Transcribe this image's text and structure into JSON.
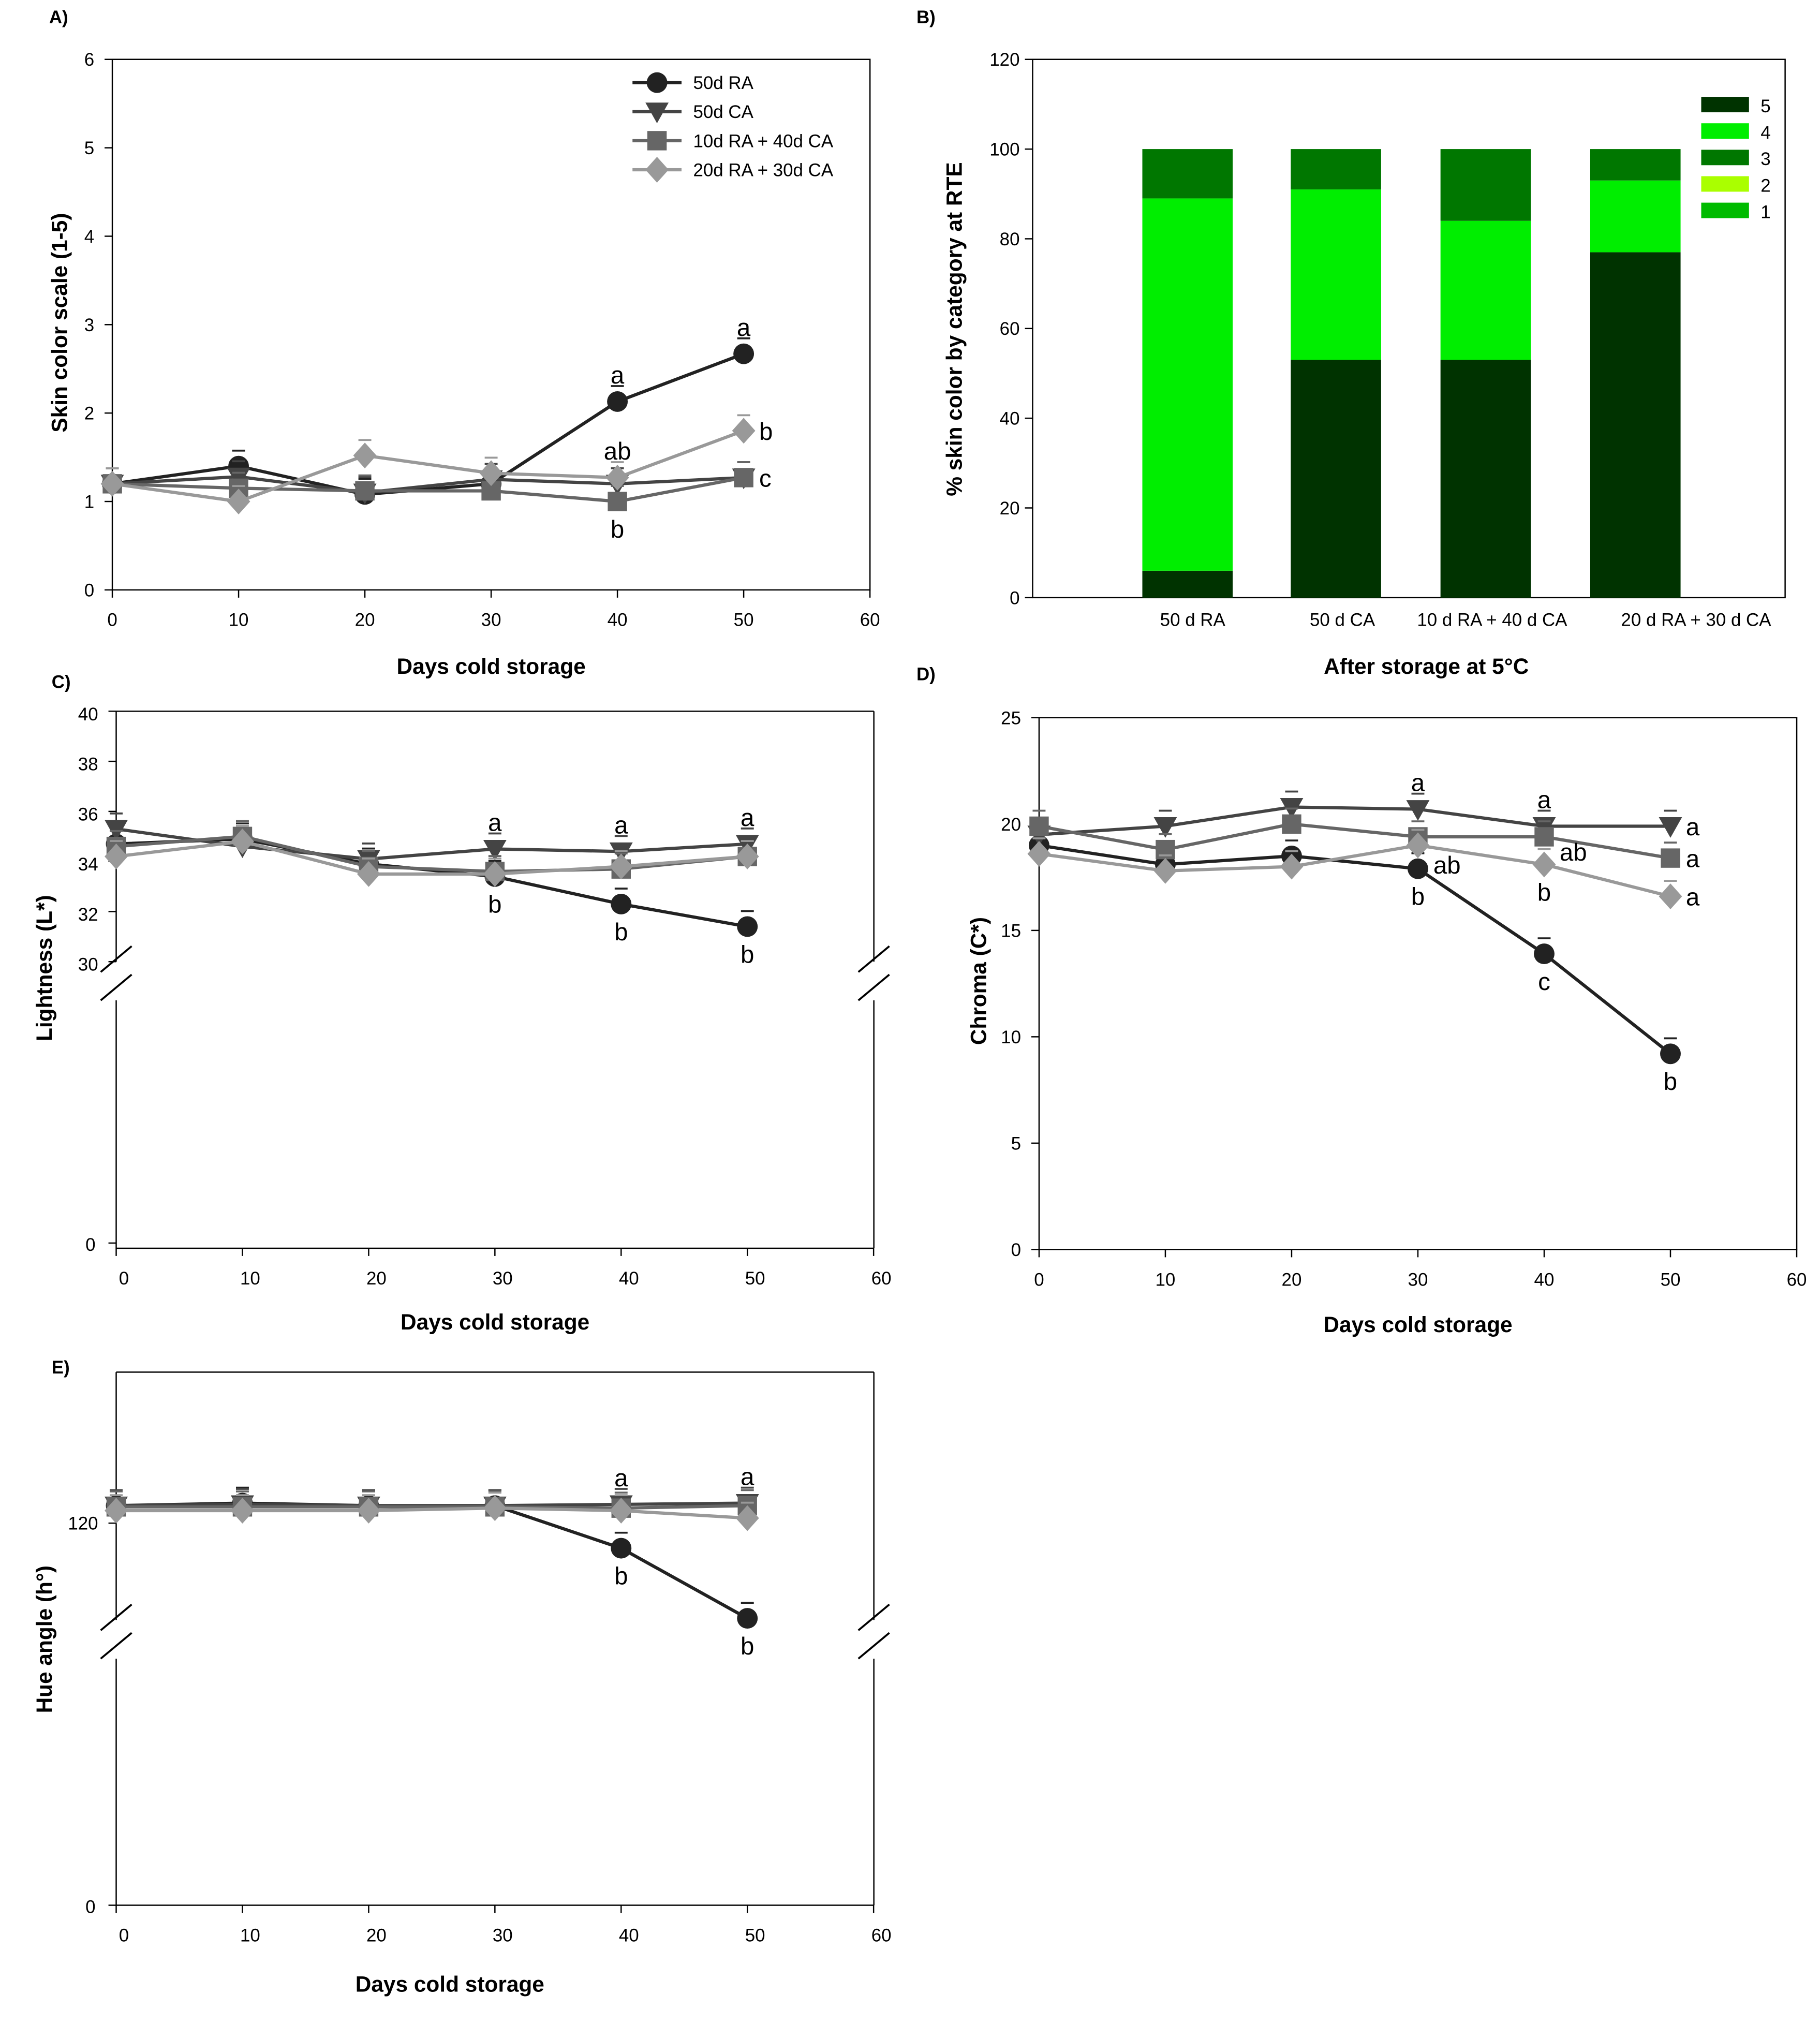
{
  "series_styles": [
    {
      "name": "50d RA",
      "color": "#222222",
      "marker": "circle"
    },
    {
      "name": "50d CA",
      "color": "#444444",
      "marker": "triangle-down"
    },
    {
      "name": "10d RA + 40d CA",
      "color": "#666666",
      "marker": "square"
    },
    {
      "name": "20d RA + 30d CA",
      "color": "#999999",
      "marker": "diamond"
    }
  ],
  "chart_data": [
    {
      "panel": "A)",
      "type": "line",
      "xlabel": "Days cold storage",
      "ylabel": "Skin color scale (1-5)",
      "xlim": [
        0,
        60
      ],
      "ylim": [
        0,
        6
      ],
      "xticks": [
        0,
        10,
        20,
        30,
        40,
        50,
        60
      ],
      "yticks": [
        0,
        1,
        2,
        3,
        4,
        5,
        6
      ],
      "legend": "top-right",
      "x": [
        0,
        10,
        20,
        30,
        40,
        50
      ],
      "series": [
        {
          "name": "50d RA",
          "values": [
            1.2,
            1.4,
            1.08,
            1.2,
            2.13,
            2.67
          ]
        },
        {
          "name": "50d CA",
          "values": [
            1.2,
            1.28,
            1.1,
            1.25,
            1.2,
            1.27
          ]
        },
        {
          "name": "10d RA + 40d CA",
          "values": [
            1.2,
            1.15,
            1.12,
            1.12,
            1.0,
            1.27
          ]
        },
        {
          "name": "20d RA + 30d CA",
          "values": [
            1.2,
            1.0,
            1.52,
            1.32,
            1.27,
            1.8
          ]
        }
      ],
      "annotations": [
        {
          "x": 40,
          "y": 2.13,
          "text": "a",
          "pos": "above"
        },
        {
          "x": 40,
          "y": 1.27,
          "text": "ab",
          "pos": "above"
        },
        {
          "x": 40,
          "y": 1.0,
          "text": "b",
          "pos": "below"
        },
        {
          "x": 50,
          "y": 2.67,
          "text": "a",
          "pos": "above"
        },
        {
          "x": 50,
          "y": 1.8,
          "text": "b",
          "pos": "right"
        },
        {
          "x": 50,
          "y": 1.27,
          "text": "c",
          "pos": "right"
        }
      ]
    },
    {
      "panel": "B)",
      "type": "bar",
      "stacked": true,
      "xlabel": "After storage at 5°C",
      "ylabel": "% skin color by category at RTE",
      "ylim": [
        0,
        120
      ],
      "yticks": [
        0,
        20,
        40,
        60,
        80,
        100,
        120
      ],
      "legend": "top-right",
      "categories": [
        "50 d RA",
        "50 d CA",
        "10 d RA + 40 d CA",
        "20 d RA + 30 d CA"
      ],
      "series": [
        {
          "name": "5",
          "color": "#003300",
          "values": [
            6,
            53,
            53,
            77
          ]
        },
        {
          "name": "4",
          "color": "#00ee00",
          "values": [
            83,
            38,
            31,
            16
          ]
        },
        {
          "name": "3",
          "color": "#007700",
          "values": [
            11,
            9,
            16,
            7
          ]
        },
        {
          "name": "2",
          "color": "#aaff00",
          "values": [
            0,
            0,
            0,
            0
          ]
        },
        {
          "name": "1",
          "color": "#00bb00",
          "values": [
            0,
            0,
            0,
            0
          ]
        }
      ]
    },
    {
      "panel": "C)",
      "type": "line",
      "xlabel": "Days cold storage",
      "ylabel": "Lightness (L*)",
      "xlim": [
        0,
        60
      ],
      "ylim": [
        30,
        40
      ],
      "axis_break": true,
      "xticks": [
        0,
        10,
        20,
        30,
        40,
        50,
        60
      ],
      "yticks": [
        30,
        32,
        34,
        36,
        38,
        40
      ],
      "ybottom_tick": 0,
      "x": [
        0,
        10,
        20,
        30,
        40,
        50
      ],
      "series": [
        {
          "name": "50d RA",
          "values": [
            34.7,
            34.9,
            33.9,
            33.4,
            32.3,
            31.4
          ]
        },
        {
          "name": "50d CA",
          "values": [
            35.3,
            34.6,
            34.1,
            34.5,
            34.4,
            34.7
          ]
        },
        {
          "name": "10d RA + 40d CA",
          "values": [
            34.6,
            35.0,
            33.8,
            33.6,
            33.7,
            34.2
          ]
        },
        {
          "name": "20d RA + 30d CA",
          "values": [
            34.2,
            34.8,
            33.5,
            33.5,
            33.8,
            34.2
          ]
        }
      ],
      "annotations": [
        {
          "x": 30,
          "y": 34.5,
          "text": "a",
          "pos": "above"
        },
        {
          "x": 30,
          "y": 33.4,
          "text": "b",
          "pos": "below"
        },
        {
          "x": 40,
          "y": 34.4,
          "text": "a",
          "pos": "above"
        },
        {
          "x": 40,
          "y": 32.3,
          "text": "b",
          "pos": "below"
        },
        {
          "x": 50,
          "y": 34.7,
          "text": "a",
          "pos": "above"
        },
        {
          "x": 50,
          "y": 31.4,
          "text": "b",
          "pos": "below"
        }
      ]
    },
    {
      "panel": "D)",
      "type": "line",
      "xlabel": "Days cold storage",
      "ylabel": "Chroma (C*)",
      "xlim": [
        0,
        60
      ],
      "ylim": [
        0,
        25
      ],
      "xticks": [
        0,
        10,
        20,
        30,
        40,
        50,
        60
      ],
      "yticks": [
        0,
        5,
        10,
        15,
        20,
        25
      ],
      "x": [
        0,
        10,
        20,
        30,
        40,
        50
      ],
      "series": [
        {
          "name": "50d RA",
          "values": [
            19.0,
            18.1,
            18.5,
            17.9,
            13.9,
            9.2
          ]
        },
        {
          "name": "50d CA",
          "values": [
            19.5,
            19.9,
            20.8,
            20.7,
            19.9,
            19.9
          ]
        },
        {
          "name": "10d RA + 40d CA",
          "values": [
            19.9,
            18.8,
            20.0,
            19.4,
            19.4,
            18.4
          ]
        },
        {
          "name": "20d RA + 30d CA",
          "values": [
            18.6,
            17.8,
            18.0,
            19.0,
            18.1,
            16.6
          ]
        }
      ],
      "annotations": [
        {
          "x": 30,
          "y": 20.7,
          "text": "a",
          "pos": "above"
        },
        {
          "x": 30,
          "y": 18.1,
          "text": "ab",
          "pos": "right"
        },
        {
          "x": 30,
          "y": 17.9,
          "text": "b",
          "pos": "below"
        },
        {
          "x": 40,
          "y": 19.9,
          "text": "a",
          "pos": "above"
        },
        {
          "x": 40,
          "y": 18.7,
          "text": "ab",
          "pos": "right"
        },
        {
          "x": 40,
          "y": 18.1,
          "text": "b",
          "pos": "below"
        },
        {
          "x": 40,
          "y": 13.9,
          "text": "c",
          "pos": "below"
        },
        {
          "x": 50,
          "y": 19.9,
          "text": "a",
          "pos": "right"
        },
        {
          "x": 50,
          "y": 18.4,
          "text": "a",
          "pos": "right"
        },
        {
          "x": 50,
          "y": 16.6,
          "text": "a",
          "pos": "right"
        },
        {
          "x": 50,
          "y": 9.2,
          "text": "b",
          "pos": "below"
        }
      ]
    },
    {
      "panel": "E)",
      "type": "line",
      "xlabel": "Days cold storage",
      "ylabel": "Hue angle (h°)",
      "xlim": [
        0,
        60
      ],
      "axis_break": true,
      "xticks": [
        0,
        10,
        20,
        30,
        40,
        50,
        60
      ],
      "yticks": [
        120
      ],
      "ybottom_tick": 0,
      "x": [
        0,
        10,
        20,
        30,
        40,
        50
      ],
      "series": [
        {
          "name": "50d RA",
          "values": [
            121.4,
            121.6,
            121.4,
            121.4,
            118.0,
            112.4
          ]
        },
        {
          "name": "50d CA",
          "values": [
            121.4,
            121.5,
            121.4,
            121.4,
            121.5,
            121.6
          ]
        },
        {
          "name": "10d RA + 40d CA",
          "values": [
            121.3,
            121.3,
            121.3,
            121.3,
            121.2,
            121.4
          ]
        },
        {
          "name": "20d RA + 30d CA",
          "values": [
            121.0,
            121.0,
            121.0,
            121.2,
            121.0,
            120.4
          ]
        }
      ],
      "annotations": [
        {
          "x": 40,
          "y": 121.5,
          "text": "a",
          "pos": "above"
        },
        {
          "x": 40,
          "y": 118.0,
          "text": "b",
          "pos": "below"
        },
        {
          "x": 50,
          "y": 121.6,
          "text": "a",
          "pos": "above"
        },
        {
          "x": 50,
          "y": 112.4,
          "text": "b",
          "pos": "below"
        }
      ]
    }
  ]
}
